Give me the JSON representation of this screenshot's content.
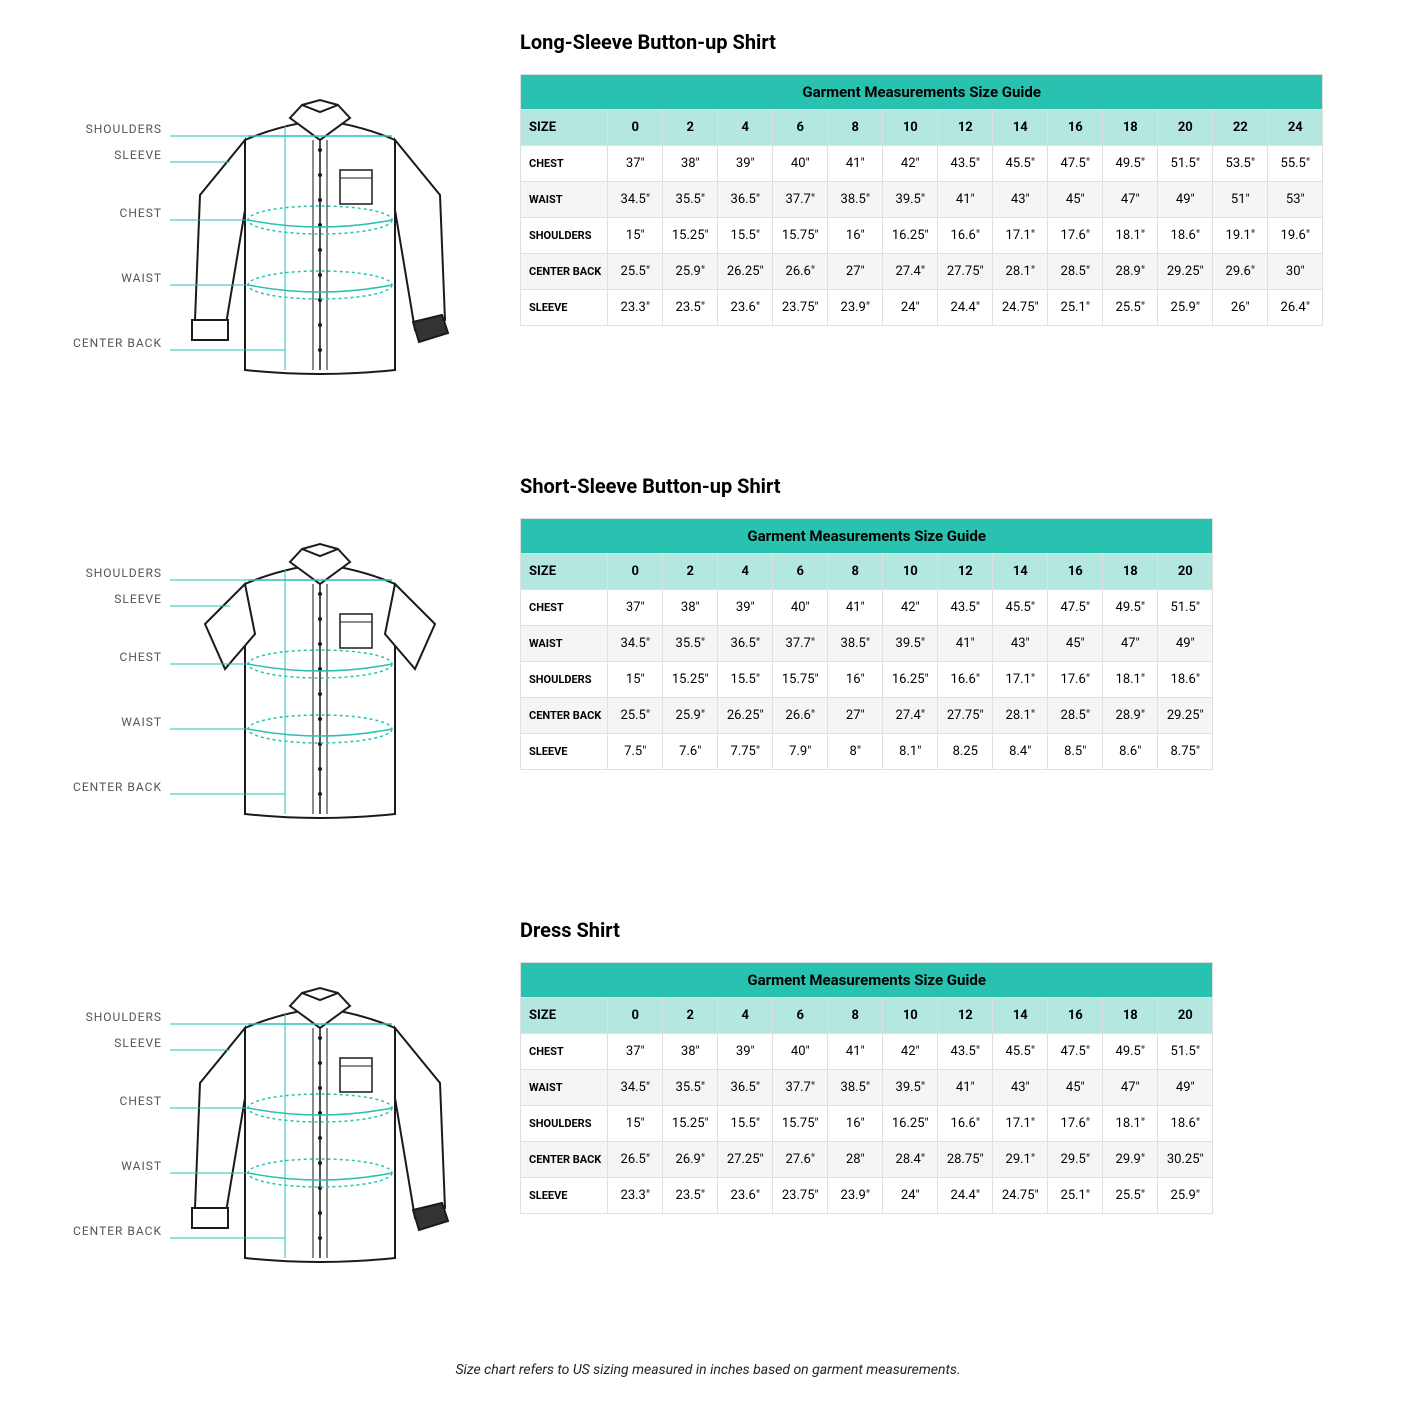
{
  "colors": {
    "header_bg": "#29c2b0",
    "subheader_bg": "#b4e7e0",
    "row_alt_bg": "#f5f5f5",
    "border": "#e0e0e0",
    "diagram_line": "#29c2b0",
    "diagram_stroke": "#1a1a1a"
  },
  "guide_title": "Garment Measurements Size Guide",
  "size_label": "SIZE",
  "diagram_labels": [
    "SHOULDERS",
    "SLEEVE",
    "CHEST",
    "WAIST",
    "CENTER BACK"
  ],
  "footer_note": "Size chart refers to US sizing measured in inches based on garment measurements.",
  "sections": [
    {
      "title": "Long-Sleeve Button-up Shirt",
      "shirt_type": "long",
      "sizes": [
        "0",
        "2",
        "4",
        "6",
        "8",
        "10",
        "12",
        "14",
        "16",
        "18",
        "20",
        "22",
        "24"
      ],
      "rows": [
        {
          "label": "CHEST",
          "vals": [
            "37\"",
            "38\"",
            "39\"",
            "40\"",
            "41\"",
            "42\"",
            "43.5\"",
            "45.5\"",
            "47.5\"",
            "49.5\"",
            "51.5\"",
            "53.5\"",
            "55.5\""
          ]
        },
        {
          "label": "WAIST",
          "vals": [
            "34.5\"",
            "35.5\"",
            "36.5\"",
            "37.7\"",
            "38.5\"",
            "39.5\"",
            "41\"",
            "43\"",
            "45\"",
            "47\"",
            "49\"",
            "51\"",
            "53\""
          ]
        },
        {
          "label": "SHOULDERS",
          "vals": [
            "15\"",
            "15.25\"",
            "15.5\"",
            "15.75\"",
            "16\"",
            "16.25\"",
            "16.6\"",
            "17.1\"",
            "17.6\"",
            "18.1\"",
            "18.6\"",
            "19.1\"",
            "19.6\""
          ]
        },
        {
          "label": "CENTER BACK",
          "vals": [
            "25.5\"",
            "25.9\"",
            "26.25\"",
            "26.6\"",
            "27\"",
            "27.4\"",
            "27.75\"",
            "28.1\"",
            "28.5\"",
            "28.9\"",
            "29.25\"",
            "29.6\"",
            "30\""
          ]
        },
        {
          "label": "SLEEVE",
          "vals": [
            "23.3\"",
            "23.5\"",
            "23.6\"",
            "23.75\"",
            "23.9\"",
            "24\"",
            "24.4\"",
            "24.75\"",
            "25.1\"",
            "25.5\"",
            "25.9\"",
            "26\"",
            "26.4\""
          ]
        }
      ]
    },
    {
      "title": "Short-Sleeve Button-up Shirt",
      "shirt_type": "short",
      "sizes": [
        "0",
        "2",
        "4",
        "6",
        "8",
        "10",
        "12",
        "14",
        "16",
        "18",
        "20"
      ],
      "rows": [
        {
          "label": "CHEST",
          "vals": [
            "37\"",
            "38\"",
            "39\"",
            "40\"",
            "41\"",
            "42\"",
            "43.5\"",
            "45.5\"",
            "47.5\"",
            "49.5\"",
            "51.5\""
          ]
        },
        {
          "label": "WAIST",
          "vals": [
            "34.5\"",
            "35.5\"",
            "36.5\"",
            "37.7\"",
            "38.5\"",
            "39.5\"",
            "41\"",
            "43\"",
            "45\"",
            "47\"",
            "49\""
          ]
        },
        {
          "label": "SHOULDERS",
          "vals": [
            "15\"",
            "15.25\"",
            "15.5\"",
            "15.75\"",
            "16\"",
            "16.25\"",
            "16.6\"",
            "17.1\"",
            "17.6\"",
            "18.1\"",
            "18.6\""
          ]
        },
        {
          "label": "CENTER BACK",
          "vals": [
            "25.5\"",
            "25.9\"",
            "26.25\"",
            "26.6\"",
            "27\"",
            "27.4\"",
            "27.75\"",
            "28.1\"",
            "28.5\"",
            "28.9\"",
            "29.25\""
          ]
        },
        {
          "label": "SLEEVE",
          "vals": [
            "7.5\"",
            "7.6\"",
            "7.75\"",
            "7.9\"",
            "8\"",
            "8.1\"",
            "8.25",
            "8.4\"",
            "8.5\"",
            "8.6\"",
            "8.75\""
          ]
        }
      ]
    },
    {
      "title": "Dress Shirt",
      "shirt_type": "long",
      "sizes": [
        "0",
        "2",
        "4",
        "6",
        "8",
        "10",
        "12",
        "14",
        "16",
        "18",
        "20"
      ],
      "rows": [
        {
          "label": "CHEST",
          "vals": [
            "37\"",
            "38\"",
            "39\"",
            "40\"",
            "41\"",
            "42\"",
            "43.5\"",
            "45.5\"",
            "47.5\"",
            "49.5\"",
            "51.5\""
          ]
        },
        {
          "label": "WAIST",
          "vals": [
            "34.5\"",
            "35.5\"",
            "36.5\"",
            "37.7\"",
            "38.5\"",
            "39.5\"",
            "41\"",
            "43\"",
            "45\"",
            "47\"",
            "49\""
          ]
        },
        {
          "label": "SHOULDERS",
          "vals": [
            "15\"",
            "15.25\"",
            "15.5\"",
            "15.75\"",
            "16\"",
            "16.25\"",
            "16.6\"",
            "17.1\"",
            "17.6\"",
            "18.1\"",
            "18.6\""
          ]
        },
        {
          "label": "CENTER BACK",
          "vals": [
            "26.5\"",
            "26.9\"",
            "27.25\"",
            "27.6\"",
            "28\"",
            "28.4\"",
            "28.75\"",
            "29.1\"",
            "29.5\"",
            "29.9\"",
            "30.25\""
          ]
        },
        {
          "label": "SLEEVE",
          "vals": [
            "23.3\"",
            "23.5\"",
            "23.6\"",
            "23.75\"",
            "23.9\"",
            "24\"",
            "24.4\"",
            "24.75\"",
            "25.1\"",
            "25.5\"",
            "25.9\""
          ]
        }
      ]
    }
  ]
}
